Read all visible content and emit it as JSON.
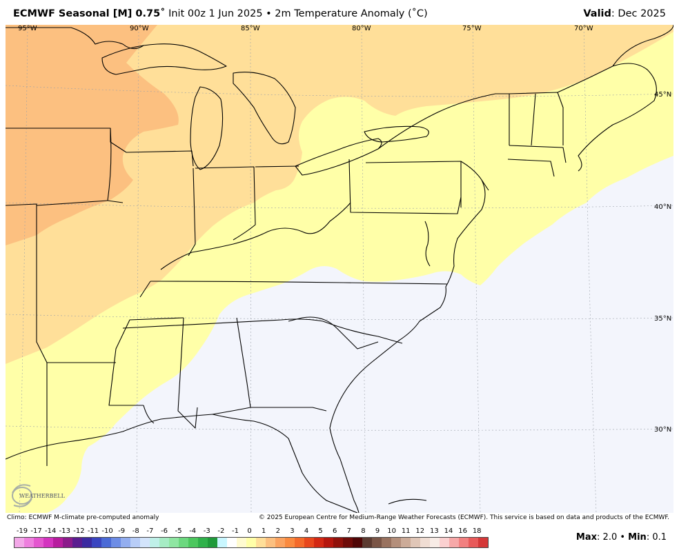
{
  "header": {
    "title_bold": "ECMWF Seasonal [M] 0.75˚",
    "title_rest": "Init 00z 1 Jun 2025 • 2m Temperature Anomaly (˚C)",
    "valid_label": "Valid",
    "valid_value": ": Dec 2025"
  },
  "map": {
    "longitude_labels": [
      "95°W",
      "90°W",
      "85°W",
      "80°W",
      "75°W",
      "70°W"
    ],
    "latitude_labels": [
      "45°N",
      "40°N",
      "35°N",
      "30°N"
    ],
    "colors": {
      "ocean_neutral": "#f3f5fc",
      "anomaly_0_1": "#ffffa8",
      "anomaly_1_2": "#ffdf99",
      "anomaly_2_3": "#fcc080",
      "border": "#000000"
    }
  },
  "logo": {
    "text": "WEATHERBELL",
    "icon": "hurricane-swirl-icon"
  },
  "credits": {
    "left": "Climo: ECMWF M-climate pre-computed anomaly",
    "right": "© 2025 European Centre for Medium-Range Weather Forecasts (ECMWF). This service is based on data and products of the ECMWF."
  },
  "colorbar": {
    "labels": [
      "-19",
      "-17",
      "-14",
      "-13",
      "-12",
      "-11",
      "-10",
      "-9",
      "-8",
      "-7",
      "-6",
      "-5",
      "-4",
      "-3",
      "-2",
      "-1",
      "0",
      "1",
      "2",
      "3",
      "4",
      "5",
      "6",
      "7",
      "8",
      "9",
      "10",
      "11",
      "12",
      "13",
      "14",
      "16",
      "18"
    ],
    "colors": [
      "#f3a8e8",
      "#ee7fde",
      "#e456cf",
      "#d433bf",
      "#b71c9e",
      "#8b1a8a",
      "#5a1d8f",
      "#3b2aa0",
      "#3a45c0",
      "#4a6ad6",
      "#6d8de6",
      "#93aef0",
      "#b8cdf7",
      "#d3e4fb",
      "#bff0e8",
      "#a6ecc4",
      "#8fe6a2",
      "#6cd87f",
      "#4cc75e",
      "#2fb14a",
      "#1f9a3a",
      "#c9f7ff",
      "#ffffff",
      "#fffbd0",
      "#ffffa8",
      "#ffdf99",
      "#fcc080",
      "#fba360",
      "#fa8a3f",
      "#f46a2a",
      "#e8471c",
      "#d32813",
      "#b5160d",
      "#90110a",
      "#6e0b08",
      "#4f0606",
      "#5b3a30",
      "#7a5546",
      "#99725f",
      "#b48f7b",
      "#ccab98",
      "#e0c6b7",
      "#f0ddd3",
      "#f8ece6",
      "#fbd0d0",
      "#f7a8a8",
      "#f28080",
      "#e85a5a",
      "#d43838"
    ],
    "max_label": "Max",
    "max_value": ": 2.0",
    "sep": " • ",
    "min_label": "Min",
    "min_value": ": 0.1"
  }
}
